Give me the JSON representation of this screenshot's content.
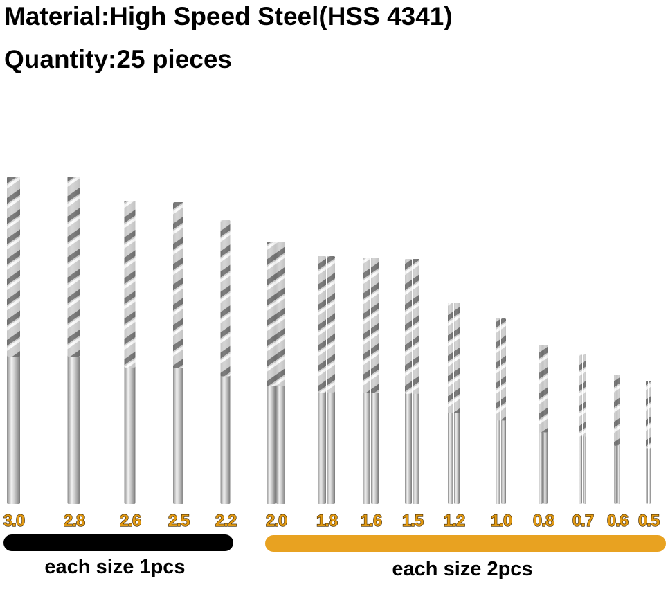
{
  "header": {
    "material": "Material:High Speed Steel(HSS 4341)",
    "quantity": "Quantity:25 pieces"
  },
  "sizes": [
    "3.0",
    "2.8",
    "2.6",
    "2.5",
    "2.2",
    "2.0",
    "1.8",
    "1.6",
    "1.5",
    "1.2",
    "1.0",
    "0.8",
    "0.7",
    "0.6",
    "0.5"
  ],
  "groups": [
    "each size 1pcs",
    "each size 2pcs"
  ]
}
